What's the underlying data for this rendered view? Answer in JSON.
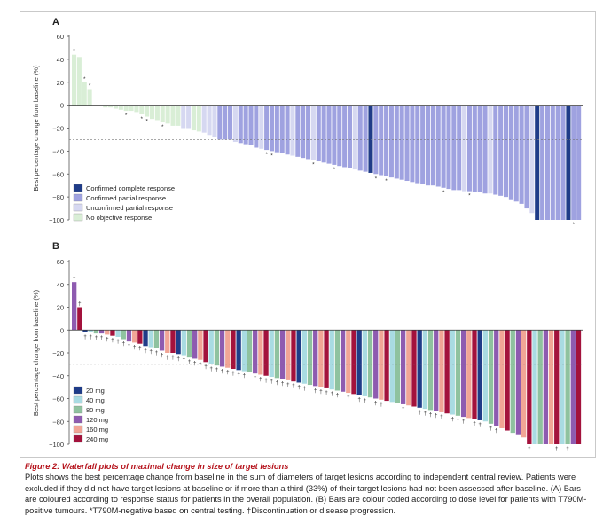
{
  "panels": [
    {
      "id": "A",
      "label": "A",
      "ylabel": "Best percentage change from baseline (%)",
      "yticks": [
        "60",
        "40",
        "20",
        "0",
        "−20",
        "−40",
        "−60",
        "−80",
        "−100"
      ],
      "reference_line": -30,
      "legend": [
        {
          "label": "Confirmed complete response",
          "color": "#1f3c88"
        },
        {
          "label": "Confirmed partial response",
          "color": "#9fa2e0"
        },
        {
          "label": "Unconfirmed partial response",
          "color": "#d6d8f1"
        },
        {
          "label": "No objective response",
          "color": "#d9eed6"
        }
      ]
    },
    {
      "id": "B",
      "label": "B",
      "ylabel": "Best percentage change from baseline (%)",
      "yticks": [
        "60",
        "40",
        "20",
        "0",
        "−20",
        "−40",
        "−60",
        "−80",
        "−100"
      ],
      "reference_line": -30,
      "legend": [
        {
          "label": "20 mg",
          "color": "#1f3c88"
        },
        {
          "label": "40 mg",
          "color": "#a9dbe2"
        },
        {
          "label": "80 mg",
          "color": "#8fc29f"
        },
        {
          "label": "120 mg",
          "color": "#8e5bb0"
        },
        {
          "label": "160 mg",
          "color": "#f1a596"
        },
        {
          "label": "240 mg",
          "color": "#a3123c"
        }
      ]
    }
  ],
  "chart_data": [
    {
      "type": "bar",
      "panel": "A",
      "ylabel": "Best percentage change from baseline (%)",
      "ylim": [
        -100,
        60
      ],
      "categories_legend": [
        "Confirmed complete response",
        "Confirmed partial response",
        "Unconfirmed partial response",
        "No objective response"
      ],
      "values": [
        44,
        42,
        20,
        14,
        -1,
        -1,
        -2,
        -2,
        -3,
        -4,
        -5,
        -5,
        -6,
        -8,
        -10,
        -12,
        -13,
        -15,
        -16,
        -18,
        -18,
        -20,
        -20,
        -22,
        -23,
        -24,
        -26,
        -28,
        -30,
        -30,
        -30,
        -32,
        -33,
        -34,
        -35,
        -37,
        -38,
        -39,
        -40,
        -41,
        -42,
        -43,
        -44,
        -45,
        -46,
        -47,
        -48,
        -49,
        -50,
        -51,
        -52,
        -53,
        -54,
        -55,
        -56,
        -57,
        -58,
        -59,
        -60,
        -61,
        -62,
        -63,
        -64,
        -65,
        -66,
        -67,
        -68,
        -69,
        -70,
        -70,
        -71,
        -72,
        -73,
        -74,
        -74,
        -75,
        -75,
        -76,
        -76,
        -77,
        -77,
        -78,
        -79,
        -80,
        -82,
        -84,
        -86,
        -90,
        -94,
        -100,
        -100,
        -100,
        -100,
        -100,
        -100,
        -100,
        -100,
        -100
      ],
      "response": [
        3,
        3,
        3,
        3,
        3,
        3,
        3,
        3,
        3,
        3,
        3,
        3,
        3,
        3,
        3,
        3,
        3,
        3,
        3,
        3,
        3,
        2,
        2,
        3,
        3,
        2,
        2,
        2,
        1,
        1,
        1,
        2,
        1,
        1,
        1,
        1,
        2,
        1,
        1,
        1,
        1,
        1,
        2,
        1,
        1,
        1,
        2,
        1,
        1,
        1,
        1,
        1,
        1,
        1,
        2,
        1,
        1,
        0,
        1,
        1,
        1,
        1,
        1,
        1,
        1,
        1,
        1,
        1,
        1,
        1,
        1,
        1,
        1,
        1,
        1,
        2,
        1,
        1,
        1,
        1,
        2,
        1,
        1,
        1,
        1,
        1,
        1,
        1,
        2,
        0,
        1,
        1,
        1,
        1,
        1,
        0,
        1,
        1
      ],
      "response_key": [
        "Confirmed complete response",
        "Confirmed partial response",
        "Unconfirmed partial response",
        "No objective response"
      ],
      "asterisk_marked_indices": [
        0,
        2,
        3,
        10,
        13,
        14,
        17,
        37,
        38,
        46,
        50,
        58,
        60,
        71,
        76,
        96
      ],
      "reference_line": -30
    },
    {
      "type": "bar",
      "panel": "B",
      "ylabel": "Best percentage change from baseline (%)",
      "ylim": [
        -100,
        60
      ],
      "dose_key": [
        "20 mg",
        "40 mg",
        "80 mg",
        "120 mg",
        "160 mg",
        "240 mg"
      ],
      "values": [
        42,
        20,
        -2,
        -2,
        -3,
        -3,
        -4,
        -5,
        -6,
        -8,
        -10,
        -11,
        -12,
        -14,
        -15,
        -16,
        -18,
        -20,
        -20,
        -21,
        -22,
        -24,
        -25,
        -26,
        -28,
        -30,
        -31,
        -32,
        -33,
        -34,
        -35,
        -36,
        -37,
        -38,
        -39,
        -40,
        -41,
        -42,
        -43,
        -44,
        -45,
        -46,
        -47,
        -48,
        -49,
        -50,
        -51,
        -52,
        -53,
        -54,
        -55,
        -56,
        -57,
        -58,
        -59,
        -60,
        -61,
        -62,
        -63,
        -64,
        -65,
        -66,
        -67,
        -68,
        -69,
        -70,
        -71,
        -72,
        -73,
        -74,
        -75,
        -76,
        -77,
        -78,
        -79,
        -80,
        -82,
        -84,
        -86,
        -88,
        -90,
        -92,
        -94,
        -100,
        -100,
        -100,
        -100,
        -100,
        -100,
        -100,
        -100,
        -100,
        -100
      ],
      "dose": [
        3,
        5,
        0,
        1,
        2,
        3,
        4,
        5,
        1,
        2,
        3,
        4,
        5,
        0,
        1,
        2,
        3,
        4,
        5,
        0,
        1,
        2,
        3,
        4,
        5,
        1,
        2,
        3,
        4,
        5,
        0,
        1,
        2,
        3,
        4,
        5,
        1,
        2,
        3,
        4,
        5,
        0,
        1,
        2,
        3,
        4,
        5,
        1,
        2,
        3,
        4,
        5,
        0,
        1,
        2,
        3,
        4,
        5,
        1,
        2,
        3,
        4,
        5,
        0,
        1,
        2,
        3,
        4,
        5,
        1,
        2,
        3,
        4,
        5,
        0,
        1,
        2,
        3,
        4,
        5,
        2,
        3,
        4,
        5,
        1,
        2,
        3,
        4,
        5,
        1,
        2,
        3,
        5
      ],
      "dagger_marked_indices": [
        0,
        1,
        2,
        3,
        4,
        5,
        6,
        7,
        8,
        9,
        10,
        11,
        12,
        13,
        14,
        15,
        16,
        17,
        18,
        19,
        20,
        21,
        22,
        23,
        24,
        25,
        26,
        27,
        28,
        29,
        30,
        31,
        33,
        34,
        35,
        36,
        37,
        38,
        39,
        40,
        41,
        42,
        44,
        45,
        46,
        47,
        48,
        50,
        52,
        53,
        55,
        56,
        60,
        63,
        64,
        65,
        66,
        67,
        69,
        70,
        71,
        73,
        74,
        76,
        77,
        83,
        88,
        90
      ],
      "reference_line": -30
    }
  ],
  "marks": {
    "asterisk": "*",
    "dagger": "†"
  },
  "caption": {
    "title": "Figure 2: Waterfall plots of maximal change in size of target lesions",
    "body": "Plots shows the best percentage change from baseline in the sum of diameters of target lesions according to independent central review. Patients were excluded if they did not have target lesions at baseline or if more than a third (33%) of their target lesions had not been assessed after baseline. (A) Bars are coloured according to response status for patients in the overall population. (B) Bars are colour coded according to dose level for patients with T790M-positive tumours. *T790M-negative based on central testing. †Discontinuation or disease progression."
  }
}
